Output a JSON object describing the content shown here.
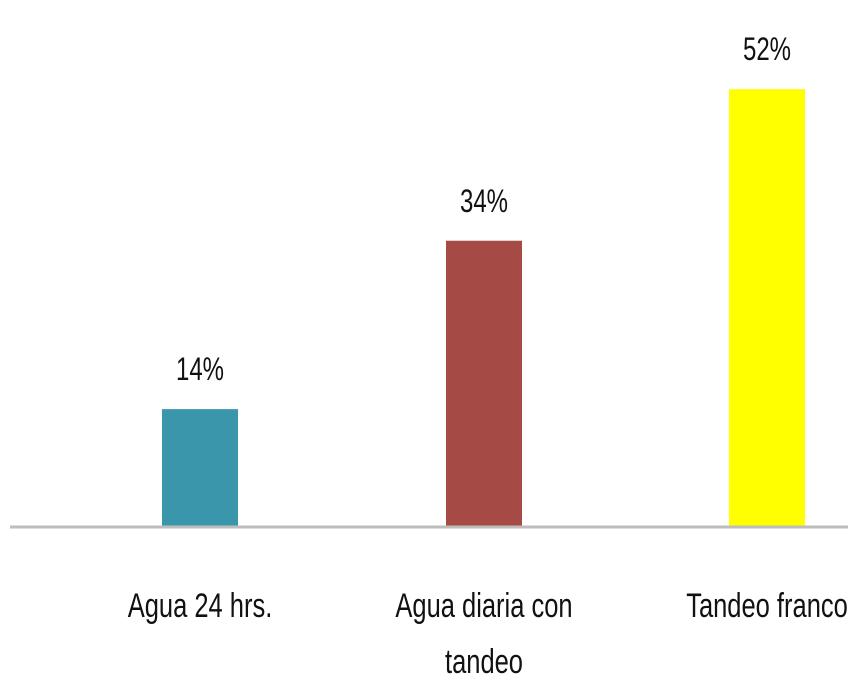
{
  "chart_data": {
    "type": "bar",
    "categories": [
      "Agua 24 hrs.",
      "Agua diaria con tandeo",
      "Tandeo franco"
    ],
    "values": [
      14,
      34,
      52
    ],
    "value_labels": [
      "14%",
      "34%",
      "52%"
    ],
    "colors": [
      "#3a96aa",
      "#a54a45",
      "#ffff00"
    ]
  }
}
